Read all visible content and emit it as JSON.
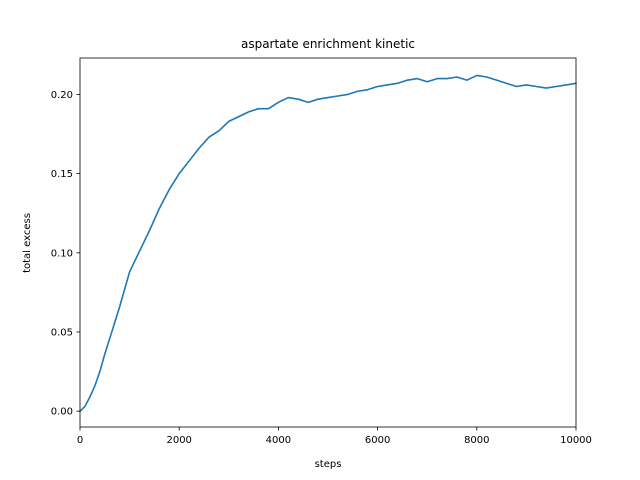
{
  "chart_data": {
    "type": "line",
    "title": "aspartate enrichment kinetic",
    "xlabel": "steps",
    "ylabel": "total excess",
    "xlim": [
      0,
      10000
    ],
    "ylim": [
      -0.01,
      0.223
    ],
    "xticks": [
      0,
      2000,
      4000,
      6000,
      8000,
      10000
    ],
    "xtick_labels": [
      "0",
      "2000",
      "4000",
      "6000",
      "8000",
      "10000"
    ],
    "yticks": [
      0.0,
      0.05,
      0.1,
      0.15,
      0.2
    ],
    "ytick_labels": [
      "0.00",
      "0.05",
      "0.10",
      "0.15",
      "0.20"
    ],
    "grid": false,
    "line_color": "#1f77b4",
    "series": [
      {
        "x": [
          0,
          100,
          200,
          300,
          400,
          500,
          600,
          700,
          800,
          900,
          1000,
          1200,
          1400,
          1600,
          1800,
          2000,
          2200,
          2400,
          2600,
          2800,
          3000,
          3200,
          3400,
          3600,
          3800,
          4000,
          4200,
          4400,
          4600,
          4800,
          5000,
          5200,
          5400,
          5600,
          5800,
          6000,
          6200,
          6400,
          6600,
          6800,
          7000,
          7200,
          7400,
          7600,
          7800,
          8000,
          8200,
          8400,
          8600,
          8800,
          9000,
          9200,
          9400,
          9600,
          9800,
          10000
        ],
        "y": [
          0.0,
          0.003,
          0.009,
          0.016,
          0.025,
          0.036,
          0.046,
          0.056,
          0.066,
          0.077,
          0.088,
          0.101,
          0.114,
          0.128,
          0.14,
          0.15,
          0.158,
          0.166,
          0.173,
          0.177,
          0.183,
          0.186,
          0.189,
          0.191,
          0.191,
          0.195,
          0.198,
          0.197,
          0.195,
          0.197,
          0.198,
          0.199,
          0.2,
          0.202,
          0.203,
          0.205,
          0.206,
          0.207,
          0.209,
          0.21,
          0.208,
          0.21,
          0.21,
          0.211,
          0.209,
          0.212,
          0.211,
          0.209,
          0.207,
          0.205,
          0.206,
          0.205,
          0.204,
          0.205,
          0.206,
          0.207
        ]
      }
    ]
  }
}
